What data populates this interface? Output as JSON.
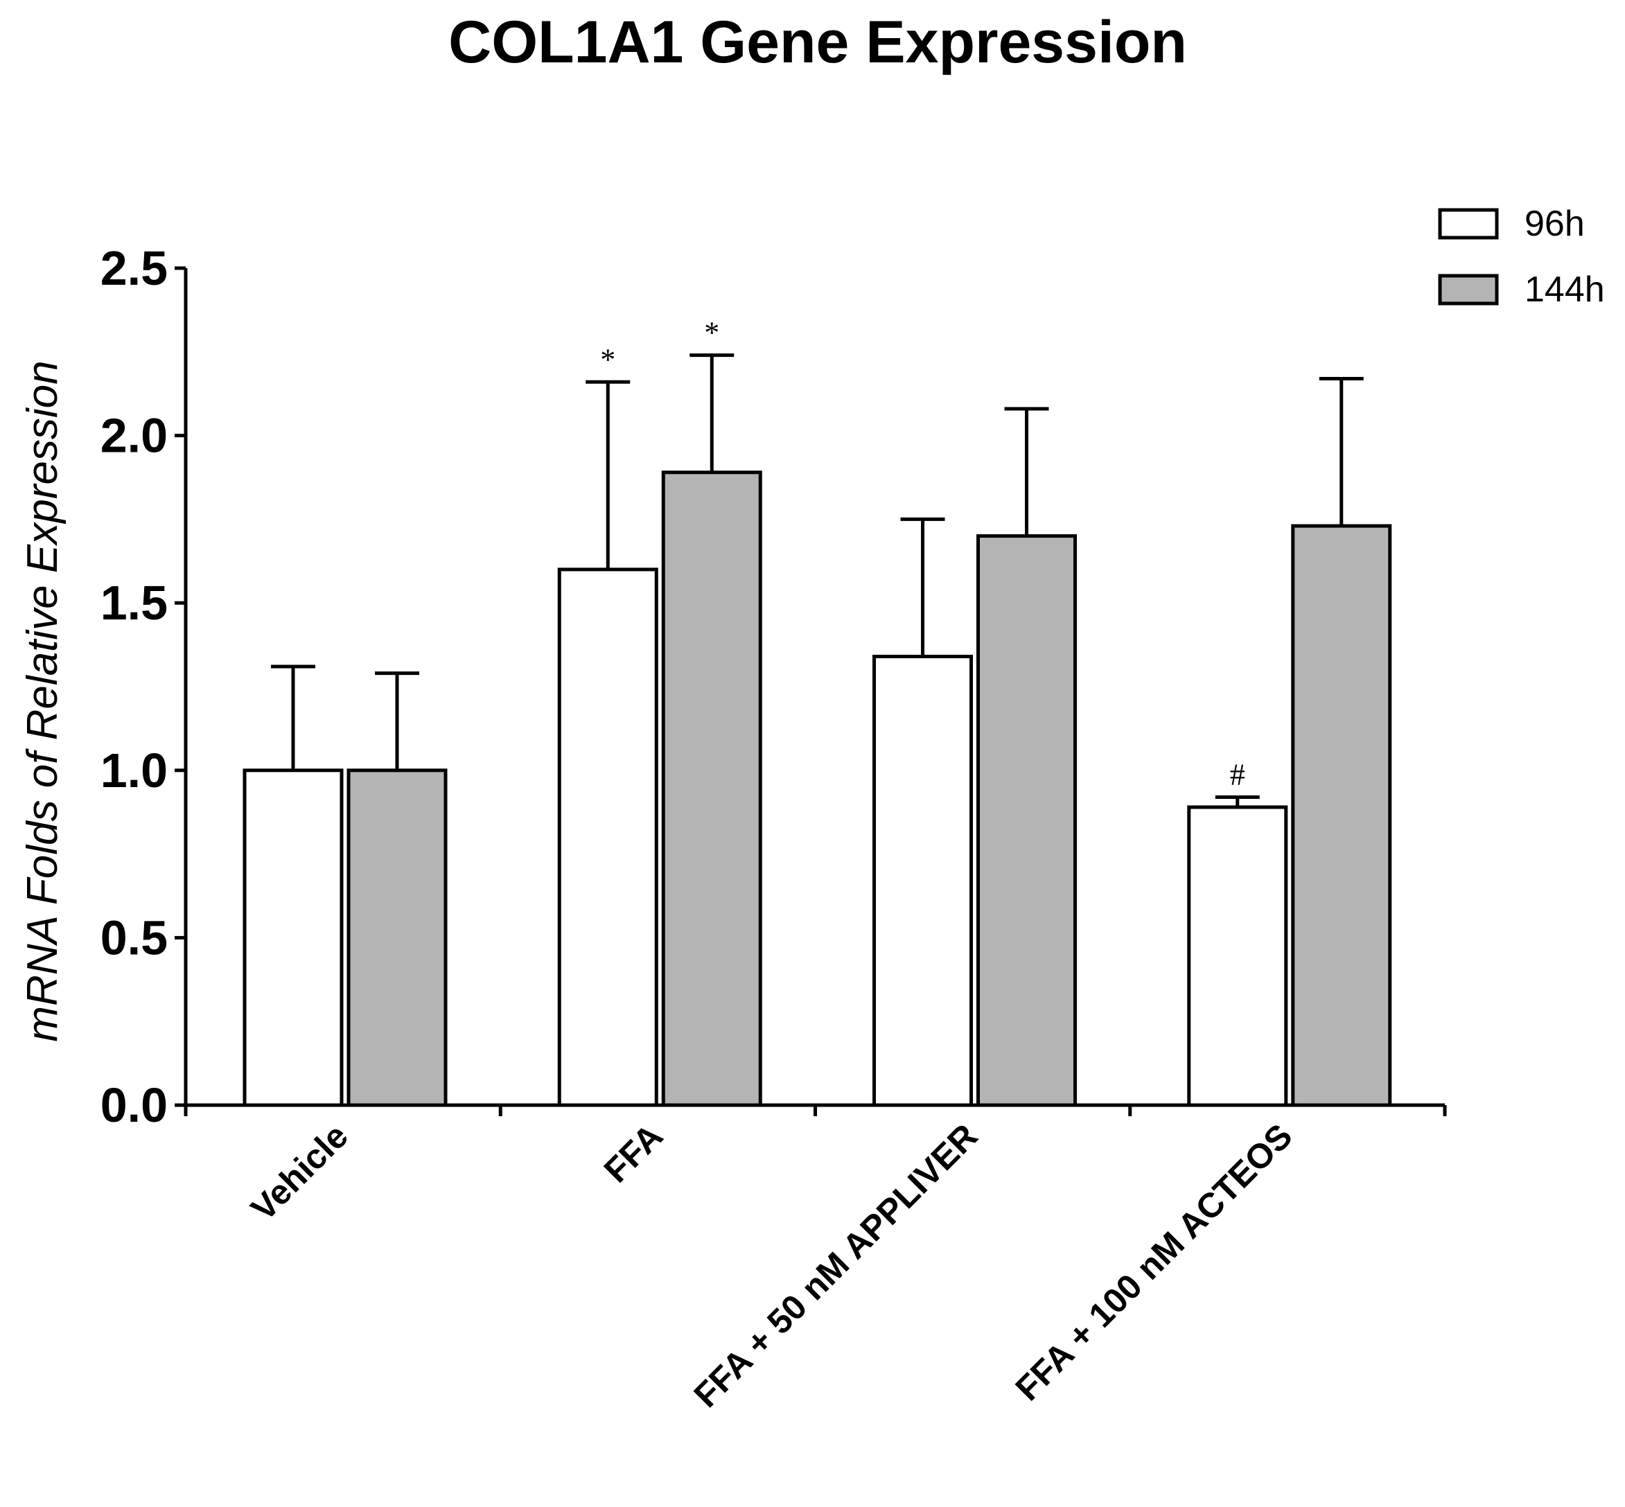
{
  "chart_data": {
    "type": "bar",
    "title": "COL1A1 Gene Expression",
    "xlabel": "",
    "ylabel": "mRNA Folds of Relative Expression",
    "ylim": [
      0,
      2.5
    ],
    "yticks": [
      "0.0",
      "0.5",
      "1.0",
      "1.5",
      "2.0",
      "2.5"
    ],
    "categories": [
      "Vehicle",
      "FFA",
      "FFA + 50 nM APPLIVER",
      "FFA + 100 nM ACTEOS"
    ],
    "series": [
      {
        "name": "96h",
        "color": "#ffffff",
        "values": [
          1.0,
          1.6,
          1.34,
          0.89
        ],
        "error": [
          0.31,
          0.56,
          0.41,
          0.03
        ],
        "annotations": [
          "",
          "*",
          "",
          "#"
        ]
      },
      {
        "name": "144h",
        "color": "#b4b4b4",
        "values": [
          1.0,
          1.89,
          1.7,
          1.73
        ],
        "error": [
          0.29,
          0.35,
          0.38,
          0.44
        ],
        "annotations": [
          "",
          "*",
          "",
          ""
        ]
      }
    ],
    "legend_position": "top-right",
    "grid": false
  }
}
